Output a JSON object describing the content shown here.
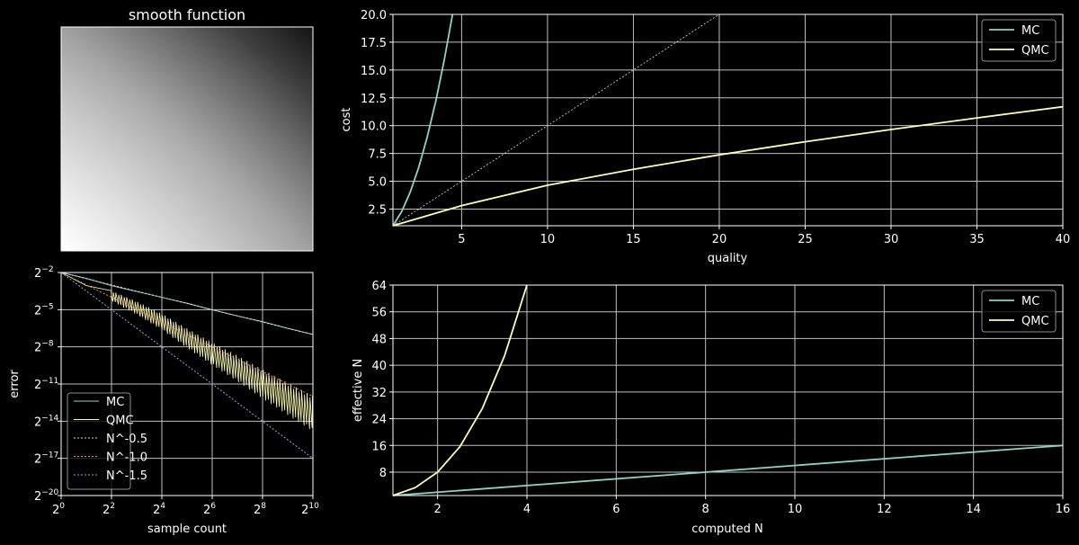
{
  "colors": {
    "mc": "#8dd3c7",
    "qmc": "#ffffb3",
    "ref_orange": "#fb8072",
    "ref_blue": "#80b1d3",
    "ref_gray": "#d9d9d9",
    "grid": "#bfbfbf",
    "background": "#000000"
  },
  "chart_data": [
    {
      "type": "heatmap",
      "title": "smooth function",
      "description_colormap": "gray",
      "grid": false
    },
    {
      "type": "line",
      "xlabel": "sample count",
      "ylabel": "error",
      "xscale": "log2",
      "yscale": "log2",
      "xlim": [
        1,
        1024
      ],
      "ylim": [
        9.5367431640625e-07,
        0.25
      ],
      "x_tick_labels": [
        "2",
        "2",
        "2",
        "2",
        "2",
        "2"
      ],
      "x_tick_exponents": [
        "0",
        "2",
        "4",
        "6",
        "8",
        "10"
      ],
      "y_tick_labels": [
        "2",
        "2",
        "2",
        "2",
        "2",
        "2",
        "2"
      ],
      "y_tick_exponents": [
        "−2",
        "−5",
        "−8",
        "−11",
        "−14",
        "−17",
        "−20"
      ],
      "legend_position": "lower-left",
      "grid": true,
      "series": [
        {
          "name": "MC",
          "style": "solid",
          "x": [
            1,
            2,
            4,
            8,
            16,
            32,
            64,
            128,
            256,
            512,
            1024
          ],
          "y": [
            0.25,
            0.18,
            0.12,
            0.086,
            0.062,
            0.045,
            0.031,
            0.022,
            0.016,
            0.011,
            0.0078
          ]
        },
        {
          "name": "QMC",
          "style": "noisy",
          "x": [
            1,
            2,
            4,
            8,
            16,
            32,
            64,
            128,
            256,
            512,
            1024
          ],
          "y": [
            0.25,
            0.12,
            0.09,
            0.05,
            0.025,
            0.011,
            0.005,
            0.0024,
            0.0011,
            0.00052,
            0.00025
          ]
        },
        {
          "name": "N^-0.5",
          "style": "dotted",
          "x": [
            1,
            1024
          ],
          "y": [
            0.25,
            0.0078125
          ]
        },
        {
          "name": "N^-1.0",
          "style": "dotted",
          "x": [
            1,
            1024
          ],
          "y": [
            0.25,
            0.000244140625
          ]
        },
        {
          "name": "N^-1.5",
          "style": "dotted",
          "x": [
            1,
            1024
          ],
          "y": [
            0.25,
            7.62939453125e-06
          ]
        }
      ]
    },
    {
      "type": "line",
      "xlabel": "quality",
      "ylabel": "cost",
      "xlim": [
        1,
        40
      ],
      "ylim": [
        1,
        20
      ],
      "x_ticks": [
        "5",
        "10",
        "15",
        "20",
        "25",
        "30",
        "35",
        "40"
      ],
      "y_ticks": [
        "2.5",
        "5.0",
        "7.5",
        "10.0",
        "12.5",
        "15.0",
        "17.5",
        "20.0"
      ],
      "legend_position": "top-right",
      "grid": true,
      "series": [
        {
          "name": "MC",
          "x": [
            1,
            1.5,
            2,
            2.5,
            3,
            3.5,
            4,
            4.47
          ],
          "y": [
            1,
            2.25,
            4,
            6.25,
            9,
            12.25,
            16,
            20
          ]
        },
        {
          "name": "QMC",
          "x": [
            1,
            5,
            10,
            15,
            20,
            25,
            30,
            35,
            40
          ],
          "y": [
            1,
            2.81,
            4.64,
            6.08,
            7.37,
            8.55,
            9.65,
            10.69,
            11.7
          ]
        },
        {
          "name": "",
          "style": "dotted",
          "x": [
            1,
            20
          ],
          "y": [
            1,
            20
          ]
        }
      ]
    },
    {
      "type": "line",
      "xlabel": "computed N",
      "ylabel": "effective N",
      "xlim": [
        1,
        16
      ],
      "ylim": [
        1,
        64
      ],
      "x_ticks": [
        "2",
        "4",
        "6",
        "8",
        "10",
        "12",
        "14",
        "16"
      ],
      "y_ticks": [
        "8",
        "16",
        "24",
        "32",
        "40",
        "48",
        "56",
        "64"
      ],
      "legend_position": "top-right",
      "grid": true,
      "series": [
        {
          "name": "MC",
          "x": [
            1,
            16
          ],
          "y": [
            1,
            16
          ]
        },
        {
          "name": "QMC",
          "x": [
            1,
            1.5,
            2,
            2.5,
            3,
            3.5,
            4
          ],
          "y": [
            1,
            3.375,
            8,
            15.625,
            27,
            42.875,
            64
          ]
        }
      ]
    }
  ]
}
